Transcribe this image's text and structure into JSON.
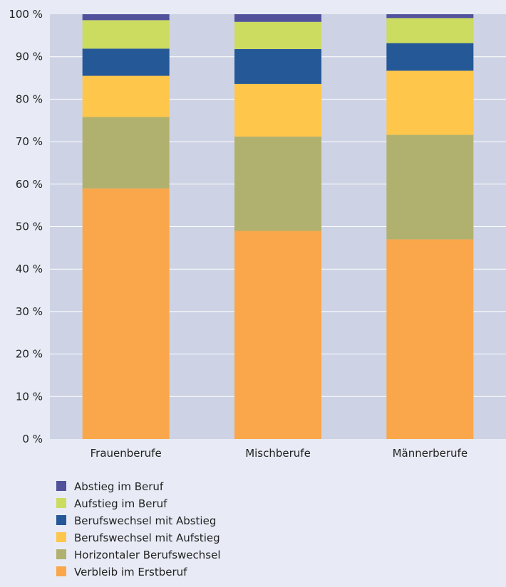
{
  "chart_data": {
    "type": "bar",
    "stacked": true,
    "categories": [
      "Frauenberufe",
      "Mischberufe",
      "Männerberufe"
    ],
    "series": [
      {
        "name": "Verbleib im Erstberuf",
        "color": "#f9a74a",
        "values": [
          59,
          49,
          47
        ]
      },
      {
        "name": "Horizontaler Berufswechsel",
        "color": "#b0b16e",
        "values": [
          16.8,
          22.2,
          24.6
        ]
      },
      {
        "name": "Berufswechsel mit Aufstieg",
        "color": "#fec64b",
        "values": [
          9.7,
          12.4,
          15.1
        ]
      },
      {
        "name": "Berufswechsel mit Abstieg",
        "color": "#255896",
        "values": [
          6.4,
          8.2,
          6.5
        ]
      },
      {
        "name": "Aufstieg im Beruf",
        "color": "#cbdc60",
        "values": [
          6.7,
          6.4,
          5.9
        ]
      },
      {
        "name": "Abstieg im Beruf",
        "color": "#51519c",
        "values": [
          1.4,
          1.8,
          0.9
        ]
      }
    ],
    "ylim": [
      0,
      100
    ],
    "yticks": [
      "0 %",
      "10 %",
      "20 %",
      "30 %",
      "40 %",
      "50 %",
      "60 %",
      "70 %",
      "80 %",
      "90 %",
      "100 %"
    ],
    "grid": true,
    "legend_position": "bottom-left",
    "legend_order": [
      "Abstieg im Beruf",
      "Aufstieg im Beruf",
      "Berufswechsel mit Abstieg",
      "Berufswechsel mit Aufstieg",
      "Horizontaler Berufswechsel",
      "Verbleib im Erstberuf"
    ],
    "plot_background": "#cdd2e4",
    "gridline_color": "#ffffff"
  }
}
